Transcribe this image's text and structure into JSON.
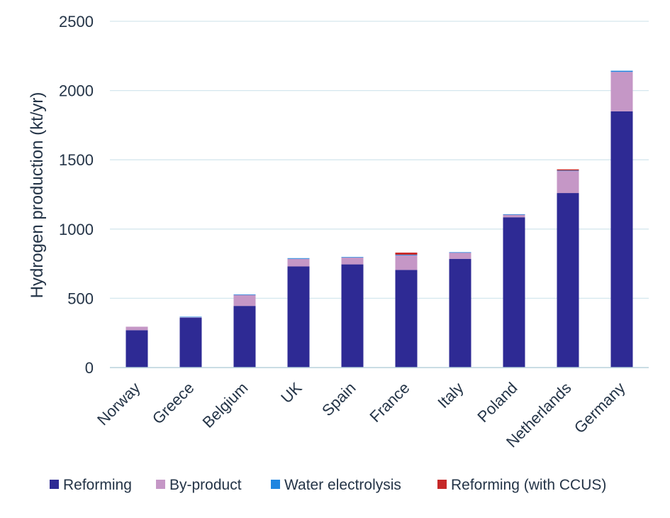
{
  "chart_data": {
    "type": "bar",
    "stacked": true,
    "ylabel": "Hydrogen production (kt/yr)",
    "xlabel": "",
    "ylim": [
      0,
      2500
    ],
    "yticks": [
      0,
      500,
      1000,
      1500,
      2000,
      2500
    ],
    "grid": true,
    "legend": "bottom",
    "categories": [
      "Norway",
      "Greece",
      "Belgium",
      "UK",
      "Spain",
      "France",
      "Italy",
      "Poland",
      "Netherlands",
      "Germany"
    ],
    "series": [
      {
        "name": "Reforming",
        "color": "#2e2a94",
        "values": [
          270,
          360,
          445,
          730,
          745,
          705,
          785,
          1085,
          1260,
          1850
        ]
      },
      {
        "name": "By-product",
        "color": "#c597c6",
        "values": [
          25,
          5,
          80,
          55,
          50,
          105,
          45,
          20,
          160,
          285
        ]
      },
      {
        "name": "Water electrolysis",
        "color": "#1f85e0",
        "values": [
          0,
          2,
          3,
          5,
          3,
          5,
          3,
          2,
          3,
          8
        ]
      },
      {
        "name": "Reforming (with CCUS)",
        "color": "#c62828",
        "values": [
          0,
          0,
          0,
          0,
          0,
          15,
          0,
          0,
          8,
          0
        ]
      }
    ]
  }
}
